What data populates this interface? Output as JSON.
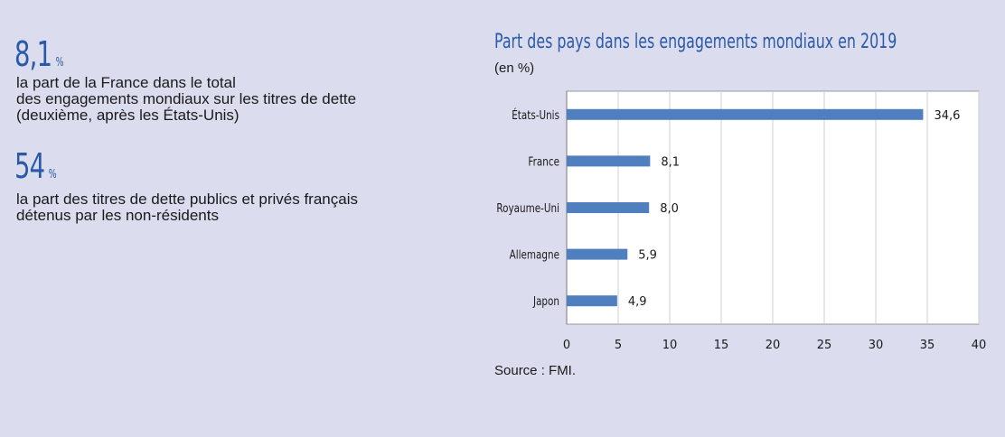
{
  "facts": [
    {
      "value": "8,1",
      "unit": "%",
      "text1": "la part de la France dans le total",
      "text2": "des engagements mondiaux sur les titres de dette",
      "text3": "(deuxième, après les États-Unis)"
    },
    {
      "value": "54",
      "unit": "%",
      "text1": "la part des titres de dette publics et privés français",
      "text2": "détenus par les non-résidents"
    }
  ],
  "chart_data": {
    "type": "bar",
    "orientation": "horizontal",
    "title": "Part des pays dans les engagements mondiaux en 2019",
    "ylabel": "(en %)",
    "categories": [
      "États-Unis",
      "France",
      "Royaume-Uni",
      "Allemagne",
      "Japon"
    ],
    "values": [
      34.6,
      8.1,
      8.0,
      5.9,
      4.9
    ],
    "value_labels": [
      "34,6",
      "8,1",
      "8,0",
      "5,9",
      "4,9"
    ],
    "xlim": [
      0,
      40
    ],
    "xticks": [
      0,
      5,
      10,
      15,
      20,
      25,
      30,
      35,
      40
    ],
    "grid": true,
    "bar_color": "#4f7fbf",
    "source": "Source : FMI."
  }
}
